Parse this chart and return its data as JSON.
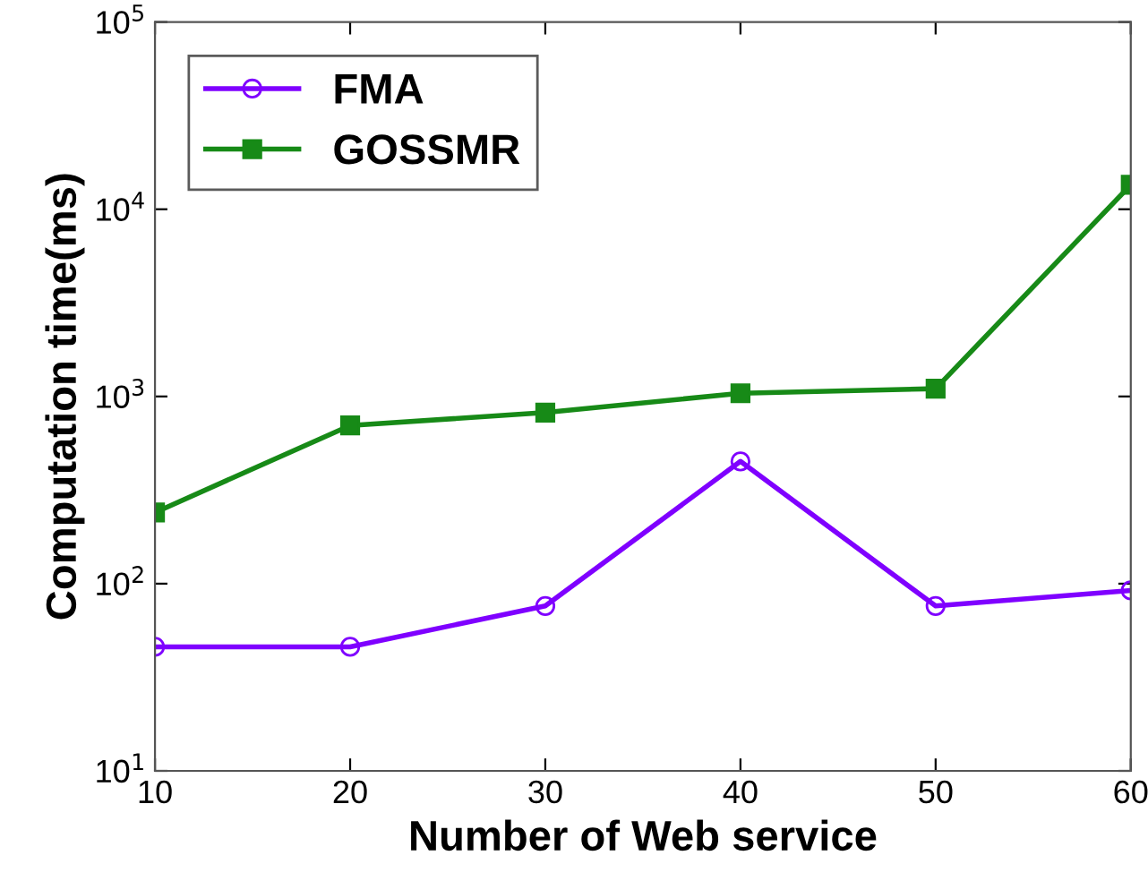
{
  "chart_data": {
    "type": "line",
    "xlabel": "Number of Web service",
    "ylabel": "Computation time(ms)",
    "x": [
      10,
      20,
      30,
      40,
      50,
      60
    ],
    "series": [
      {
        "name": "FMA",
        "color": "#7f00ff",
        "marker": "circle",
        "values": [
          46,
          46,
          76,
          450,
          76,
          92
        ]
      },
      {
        "name": "GOSSMR",
        "color": "#178a17",
        "marker": "square",
        "values": [
          240,
          700,
          820,
          1040,
          1100,
          13500
        ]
      }
    ],
    "log": "y",
    "xlim": [
      10,
      60
    ],
    "xticks": [
      10,
      20,
      30,
      40,
      50,
      60
    ],
    "ylim": [
      10,
      100000
    ],
    "yticks": [
      {
        "value": 10,
        "label": "10$^{1}$"
      },
      {
        "value": 100,
        "label": "10$^{2}$"
      },
      {
        "value": 1000,
        "label": "10$^{3}$"
      },
      {
        "value": 10000,
        "label": "10$^{4}$"
      },
      {
        "value": 100000,
        "label": "10$^{5}$"
      }
    ],
    "grid": false,
    "legend": "top left",
    "line_style": "solid"
  }
}
